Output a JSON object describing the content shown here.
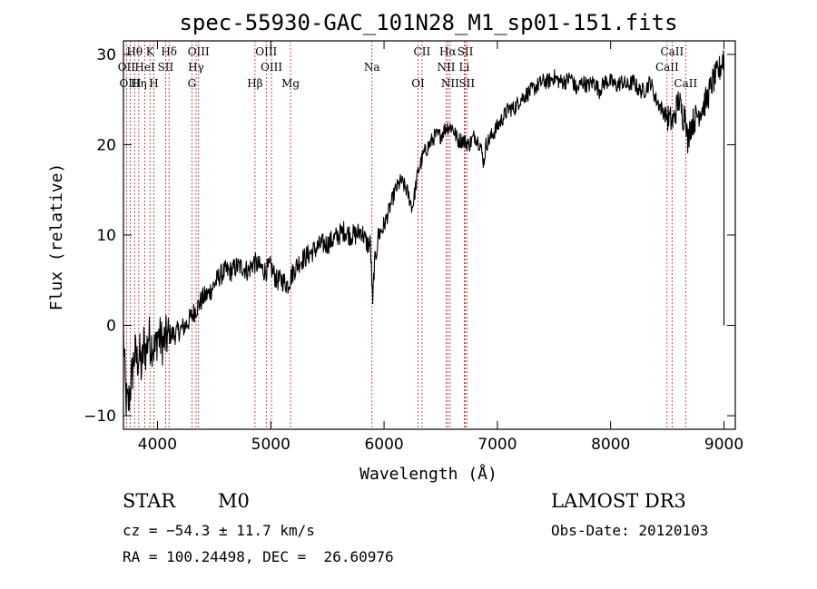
{
  "chart_data": {
    "type": "line",
    "title": "spec-55930-GAC_101N28_M1_sp01-151.fits",
    "xlabel": "Wavelength (Å)",
    "ylabel": "Flux (relative)",
    "xlim": [
      3700,
      9100
    ],
    "ylim": [
      -11.5,
      31.5
    ],
    "xticks": [
      4000,
      5000,
      6000,
      7000,
      8000,
      9000
    ],
    "yticks": [
      -10,
      0,
      10,
      20,
      30
    ],
    "grid": false,
    "series": [
      {
        "name": "flux",
        "x": [
          3700,
          3720,
          3740,
          3760,
          3780,
          3800,
          3820,
          3840,
          3860,
          3880,
          3900,
          3920,
          3940,
          3960,
          3980,
          4000,
          4050,
          4100,
          4150,
          4200,
          4250,
          4300,
          4350,
          4400,
          4450,
          4500,
          4550,
          4600,
          4650,
          4700,
          4750,
          4800,
          4850,
          4900,
          4950,
          5000,
          5050,
          5100,
          5150,
          5200,
          5250,
          5300,
          5350,
          5400,
          5450,
          5500,
          5550,
          5600,
          5650,
          5700,
          5750,
          5800,
          5850,
          5880,
          5900,
          5910,
          5930,
          5950,
          6000,
          6050,
          6100,
          6150,
          6200,
          6250,
          6300,
          6350,
          6400,
          6450,
          6500,
          6550,
          6600,
          6650,
          6700,
          6750,
          6800,
          6850,
          6880,
          6900,
          6950,
          7000,
          7050,
          7100,
          7150,
          7200,
          7250,
          7300,
          7350,
          7400,
          7450,
          7500,
          7550,
          7600,
          7650,
          7700,
          7750,
          7800,
          7850,
          7900,
          7950,
          8000,
          8050,
          8100,
          8150,
          8200,
          8250,
          8300,
          8350,
          8400,
          8450,
          8500,
          8550,
          8600,
          8640,
          8660,
          8680,
          8700,
          8750,
          8800,
          8850,
          8900,
          8950,
          8980,
          9000
        ],
        "values": [
          -1,
          -8,
          -9,
          -7,
          -5,
          -3,
          -4,
          -3,
          -5,
          -2,
          -3,
          -1,
          -2,
          -2,
          -3,
          -1,
          -2,
          -1,
          -1,
          -0.5,
          0,
          1,
          2,
          3,
          3.5,
          4.5,
          5.5,
          6,
          6,
          6.5,
          6.5,
          6,
          7,
          6.5,
          6,
          6.5,
          5,
          5,
          4.5,
          6,
          7,
          7.5,
          8,
          8.5,
          9,
          9,
          9.5,
          10,
          10.5,
          10,
          10,
          10.5,
          9,
          9,
          2,
          6,
          8,
          10,
          11,
          13,
          15,
          16,
          15,
          13,
          17,
          19,
          20,
          21,
          21,
          22,
          22,
          20.5,
          20.5,
          20,
          21,
          20,
          18,
          20,
          21,
          22,
          23,
          24,
          24,
          25,
          25.5,
          26,
          26.5,
          27,
          27,
          27.5,
          27,
          27,
          27.5,
          26,
          27,
          26.5,
          27,
          26,
          27,
          27,
          26.5,
          27,
          26.5,
          27,
          26,
          26,
          27,
          25,
          24,
          23,
          22.5,
          25,
          23,
          24,
          20,
          22,
          23,
          24,
          25,
          27,
          28,
          29,
          30
        ]
      }
    ],
    "emission_lines": [
      {
        "label": "Hθ",
        "wavelength": 3798
      },
      {
        "label": "K",
        "wavelength": 3934
      },
      {
        "label": "Hδ",
        "wavelength": 4102
      },
      {
        "label": "OIII",
        "wavelength": 4363
      },
      {
        "label": "OIII",
        "wavelength": 4960
      },
      {
        "label": "CII",
        "wavelength": 6335
      },
      {
        "label": "Hα",
        "wavelength": 6563
      },
      {
        "label": "SII",
        "wavelength": 6717
      },
      {
        "label": "CaII",
        "wavelength": 8542
      },
      {
        "label": "OII",
        "wavelength": 3727
      },
      {
        "label": "HeI",
        "wavelength": 3889
      },
      {
        "label": "SII",
        "wavelength": 4072
      },
      {
        "label": "Hγ",
        "wavelength": 4341
      },
      {
        "label": "OIII",
        "wavelength": 5007
      },
      {
        "label": "Na",
        "wavelength": 5893
      },
      {
        "label": "NII",
        "wavelength": 6548
      },
      {
        "label": "Li",
        "wavelength": 6708
      },
      {
        "label": "CaII",
        "wavelength": 8498
      },
      {
        "label": "OIII",
        "wavelength": 3760
      },
      {
        "label": "Hη",
        "wavelength": 3835
      },
      {
        "label": "H",
        "wavelength": 3968
      },
      {
        "label": "G",
        "wavelength": 4304
      },
      {
        "label": "Hβ",
        "wavelength": 4861
      },
      {
        "label": "Mg",
        "wavelength": 5175
      },
      {
        "label": "OI",
        "wavelength": 6300
      },
      {
        "label": "NII",
        "wavelength": 6583
      },
      {
        "label": "SII",
        "wavelength": 6731
      },
      {
        "label": "CaII",
        "wavelength": 8662
      }
    ]
  },
  "info": {
    "object_class": "STAR",
    "subclass": "M0",
    "survey": "LAMOST DR3",
    "redshift": "cz = −54.3 ± 11.7 km/s",
    "obs_date": "Obs-Date: 20120103",
    "coordinates": "RA = 100.24498, DEC =  26.60976"
  }
}
